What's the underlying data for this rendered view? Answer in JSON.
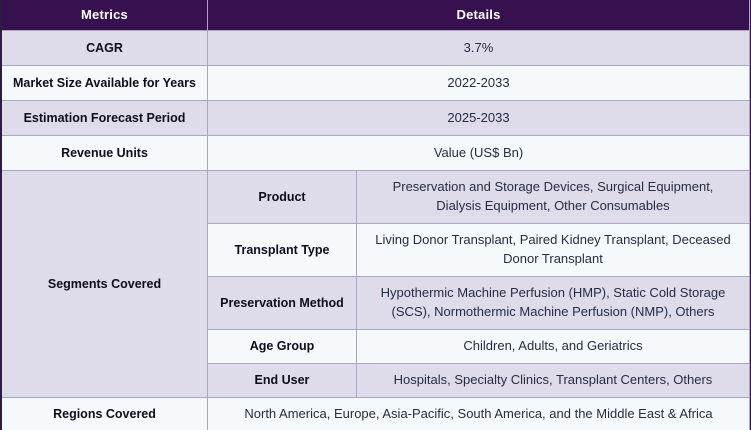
{
  "colors": {
    "header_bg": "#37114f",
    "header_text": "#ffffff",
    "row_lavender": "#dedbea",
    "row_light": "#f5f9fc",
    "divider": "#aaa5c1",
    "outer_border": "#2f1c45",
    "label_text": "#0d0d1c",
    "detail_text": "#272c44"
  },
  "header": {
    "metrics": "Metrics",
    "details": "Details"
  },
  "rows": [
    {
      "metric": "CAGR",
      "detail": "3.7%"
    },
    {
      "metric": "Market Size Available for Years",
      "detail": "2022-2033"
    },
    {
      "metric": "Estimation Forecast Period",
      "detail": "2025-2033"
    },
    {
      "metric": "Revenue Units",
      "detail": "Value (US$ Bn)"
    }
  ],
  "segments": {
    "metric": "Segments Covered",
    "items": [
      {
        "label": "Product",
        "detail": "Preservation and Storage Devices, Surgical Equipment, Dialysis Equipment, Other Consumables"
      },
      {
        "label": "Transplant Type",
        "detail": "Living Donor Transplant, Paired Kidney Transplant, Deceased Donor Transplant"
      },
      {
        "label": "Preservation Method",
        "detail": "Hypothermic Machine Perfusion (HMP), Static Cold Storage (SCS), Normothermic Machine Perfusion (NMP), Others"
      },
      {
        "label": "Age Group",
        "detail": "Children, Adults, and Geriatrics"
      },
      {
        "label": "End User",
        "detail": "Hospitals, Specialty Clinics, Transplant Centers, Others"
      }
    ]
  },
  "regions": {
    "metric": "Regions Covered",
    "detail": "North America, Europe, Asia-Pacific, South America, and the Middle East & Africa"
  }
}
